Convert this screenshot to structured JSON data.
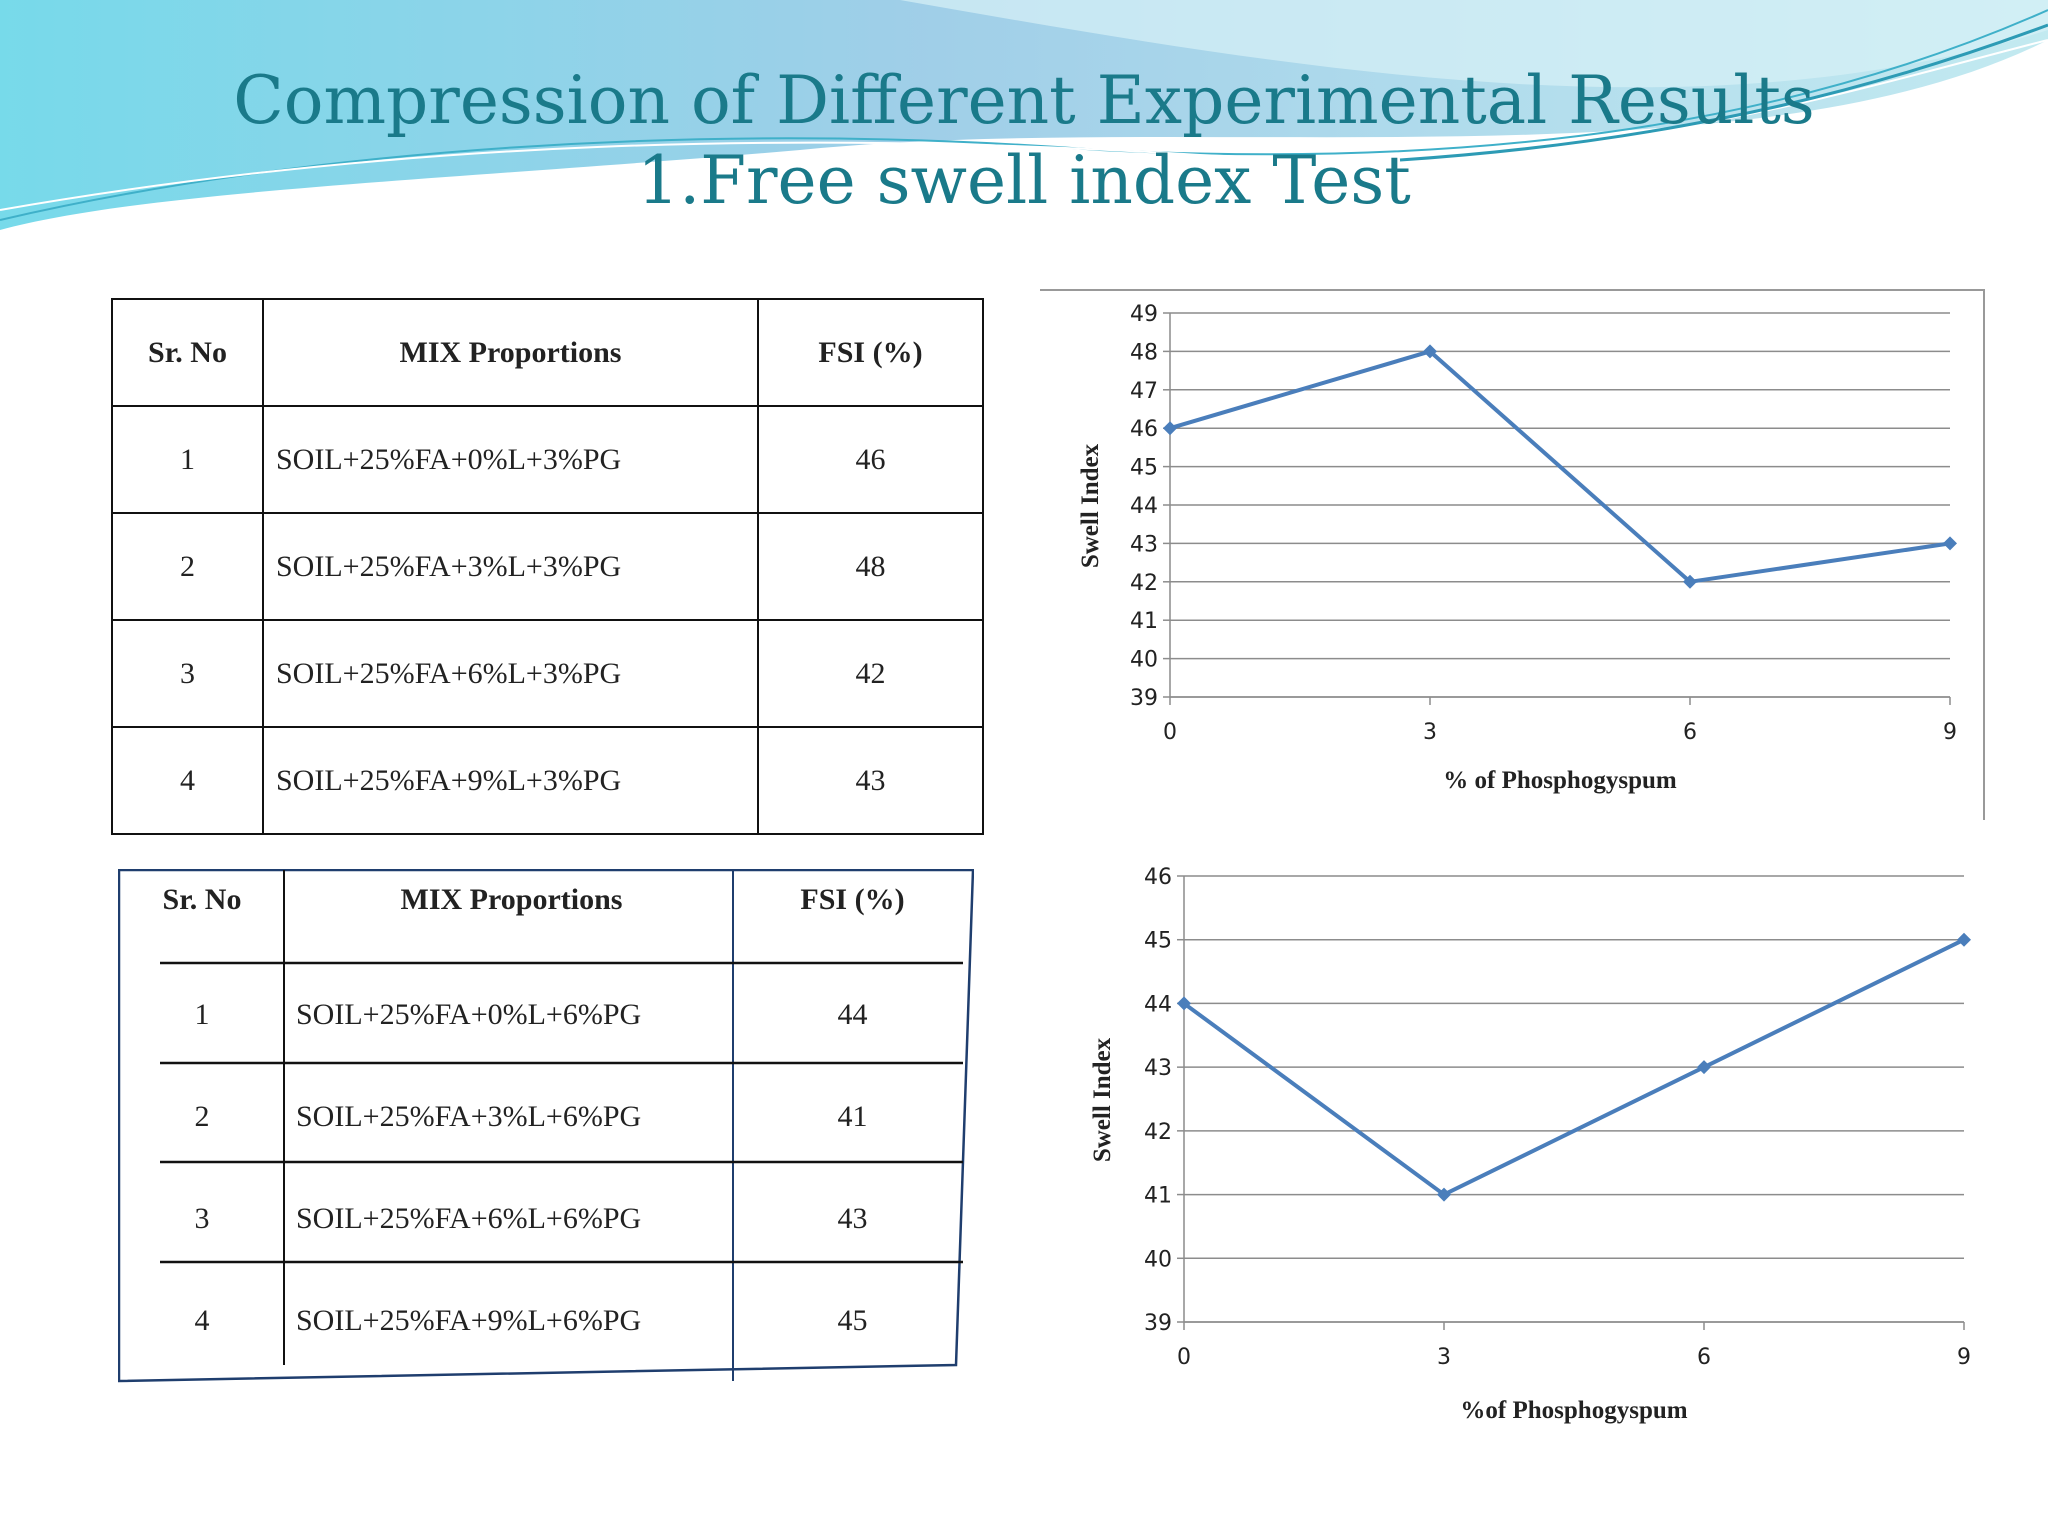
{
  "slide": {
    "title_line1": "Compression of Different Experimental Results",
    "title_line2": "1.Free swell index Test",
    "accent_color": "#1a7a8a"
  },
  "table1": {
    "headers": [
      "Sr. No",
      "MIX Proportions",
      "FSI (%)"
    ],
    "rows": [
      [
        "1",
        "SOIL+25%FA+0%L+3%PG",
        "46"
      ],
      [
        "2",
        "SOIL+25%FA+3%L+3%PG",
        "48"
      ],
      [
        "3",
        "SOIL+25%FA+6%L+3%PG",
        "42"
      ],
      [
        "4",
        "SOIL+25%FA+9%L+3%PG",
        "43"
      ]
    ]
  },
  "table2": {
    "headers": [
      "Sr. No",
      "MIX Proportions",
      "FSI (%)"
    ],
    "rows": [
      [
        "1",
        "SOIL+25%FA+0%L+6%PG",
        "44"
      ],
      [
        "2",
        "SOIL+25%FA+3%L+6%PG",
        "41"
      ],
      [
        "3",
        "SOIL+25%FA+6%L+6%PG",
        "43"
      ],
      [
        "4",
        "SOIL+25%FA+9%L+6%PG",
        "45"
      ]
    ]
  },
  "chart_data": [
    {
      "type": "line",
      "x": [
        0,
        3,
        6,
        9
      ],
      "values": [
        46,
        48,
        42,
        43
      ],
      "xlabel": "% of Phosphogyspum",
      "ylabel": "Swell Index",
      "ylim": [
        39,
        49
      ],
      "yticks": [
        39,
        40,
        41,
        42,
        43,
        44,
        45,
        46,
        47,
        48,
        49
      ],
      "xticks": [
        0,
        3,
        6,
        9
      ],
      "grid": true,
      "color": "#4a7ebb"
    },
    {
      "type": "line",
      "x": [
        0,
        3,
        6,
        9
      ],
      "values": [
        44,
        41,
        43,
        45
      ],
      "xlabel": "%of Phosphogyspum",
      "ylabel": "Swell Index",
      "ylim": [
        39,
        46
      ],
      "yticks": [
        39,
        40,
        41,
        42,
        43,
        44,
        45,
        46
      ],
      "xticks": [
        0,
        3,
        6,
        9
      ],
      "grid": true,
      "color": "#4a7ebb"
    }
  ]
}
